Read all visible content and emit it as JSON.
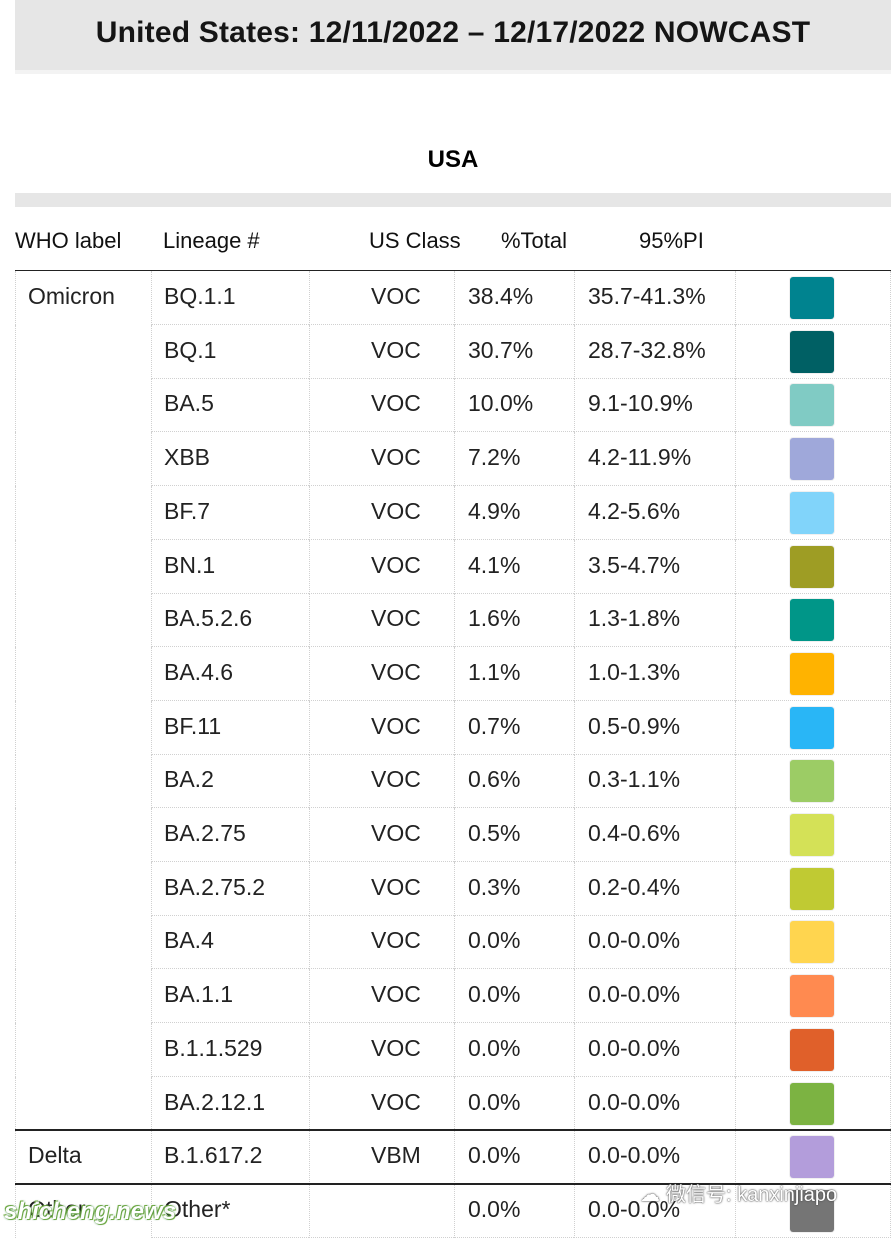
{
  "page_title": "United States: 12/11/2022 – 12/17/2022 NOWCAST",
  "region": "USA",
  "columns": {
    "who": "WHO label",
    "lineage": "Lineage #",
    "us_class": "US Class",
    "total": "%Total",
    "pi": "95%PI"
  },
  "rows": [
    {
      "who": "Omicron",
      "lineage": "BQ.1.1",
      "cls": "VOC",
      "pct": "38.4%",
      "pi": "35.7-41.3%",
      "color": "#00838f"
    },
    {
      "who": "",
      "lineage": "BQ.1",
      "cls": "VOC",
      "pct": "30.7%",
      "pi": "28.7-32.8%",
      "color": "#006064"
    },
    {
      "who": "",
      "lineage": "BA.5",
      "cls": "VOC",
      "pct": "10.0%",
      "pi": "9.1-10.9%",
      "color": "#80cbc4"
    },
    {
      "who": "",
      "lineage": "XBB",
      "cls": "VOC",
      "pct": "7.2%",
      "pi": "4.2-11.9%",
      "color": "#9fa8da"
    },
    {
      "who": "",
      "lineage": "BF.7",
      "cls": "VOC",
      "pct": "4.9%",
      "pi": "4.2-5.6%",
      "color": "#81d4fa"
    },
    {
      "who": "",
      "lineage": "BN.1",
      "cls": "VOC",
      "pct": "4.1%",
      "pi": "3.5-4.7%",
      "color": "#9e9d24"
    },
    {
      "who": "",
      "lineage": "BA.5.2.6",
      "cls": "VOC",
      "pct": "1.6%",
      "pi": "1.3-1.8%",
      "color": "#009688"
    },
    {
      "who": "",
      "lineage": "BA.4.6",
      "cls": "VOC",
      "pct": "1.1%",
      "pi": "1.0-1.3%",
      "color": "#ffb300"
    },
    {
      "who": "",
      "lineage": "BF.11",
      "cls": "VOC",
      "pct": "0.7%",
      "pi": "0.5-0.9%",
      "color": "#29b6f6"
    },
    {
      "who": "",
      "lineage": "BA.2",
      "cls": "VOC",
      "pct": "0.6%",
      "pi": "0.3-1.1%",
      "color": "#9ccc65"
    },
    {
      "who": "",
      "lineage": "BA.2.75",
      "cls": "VOC",
      "pct": "0.5%",
      "pi": "0.4-0.6%",
      "color": "#d4e157"
    },
    {
      "who": "",
      "lineage": "BA.2.75.2",
      "cls": "VOC",
      "pct": "0.3%",
      "pi": "0.2-0.4%",
      "color": "#c0ca33"
    },
    {
      "who": "",
      "lineage": "BA.4",
      "cls": "VOC",
      "pct": "0.0%",
      "pi": "0.0-0.0%",
      "color": "#ffd54f"
    },
    {
      "who": "",
      "lineage": "BA.1.1",
      "cls": "VOC",
      "pct": "0.0%",
      "pi": "0.0-0.0%",
      "color": "#ff8a50"
    },
    {
      "who": "",
      "lineage": "B.1.1.529",
      "cls": "VOC",
      "pct": "0.0%",
      "pi": "0.0-0.0%",
      "color": "#e0602a"
    },
    {
      "who": "",
      "lineage": "BA.2.12.1",
      "cls": "VOC",
      "pct": "0.0%",
      "pi": "0.0-0.0%",
      "color": "#7cb342"
    },
    {
      "who": "Delta",
      "lineage": "B.1.617.2",
      "cls": "VBM",
      "pct": "0.0%",
      "pi": "0.0-0.0%",
      "color": "#b39ddb"
    },
    {
      "who": "Other",
      "lineage": "Other*",
      "cls": "",
      "pct": "0.0%",
      "pi": "0.0-0.0%",
      "color": "#757575"
    }
  ],
  "watermarks": {
    "left": "shicheng.news",
    "right": "微信号: kanxinjiapo"
  }
}
